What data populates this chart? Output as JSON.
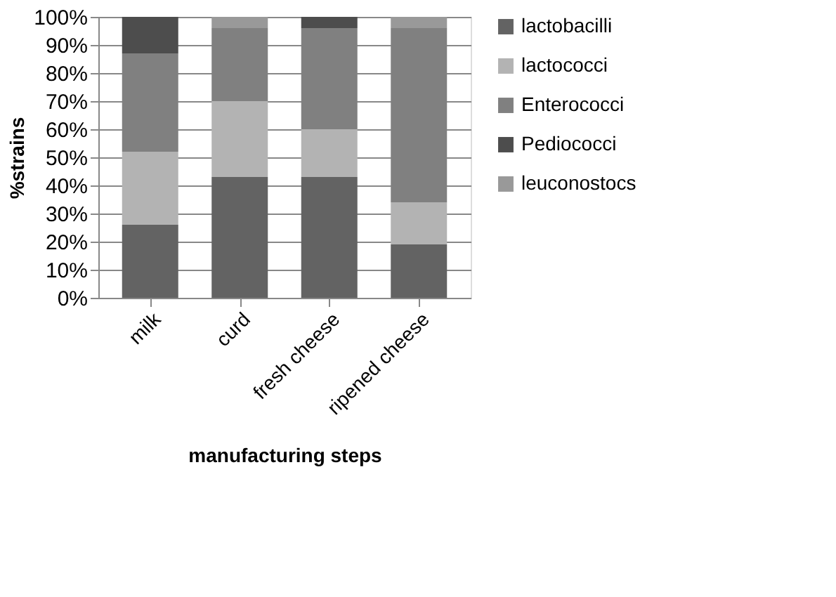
{
  "chart_data": {
    "type": "bar",
    "stacked": true,
    "xlabel": "manufacturing steps",
    "ylabel": "%strains",
    "categories": [
      "milk",
      "curd",
      "fresh cheese",
      "ripened cheese"
    ],
    "series": [
      {
        "name": "lactobacilli",
        "color": "#636363",
        "values": [
          26,
          43,
          43,
          19
        ]
      },
      {
        "name": "lactococci",
        "color": "#b3b3b3",
        "values": [
          26,
          27,
          17,
          15
        ]
      },
      {
        "name": "Enterococci",
        "color": "#808080",
        "values": [
          35,
          26,
          36,
          62
        ]
      },
      {
        "name": "Pediococci",
        "color": "#4d4d4d",
        "values": [
          13,
          0,
          4,
          0
        ]
      },
      {
        "name": "leuconostocs",
        "color": "#999999",
        "values": [
          0,
          4,
          0,
          4
        ]
      }
    ],
    "ylim": [
      0,
      100
    ],
    "yticks": [
      {
        "value": 0,
        "label": "0%"
      },
      {
        "value": 10,
        "label": "10%"
      },
      {
        "value": 20,
        "label": "20%"
      },
      {
        "value": 30,
        "label": "30%"
      },
      {
        "value": 40,
        "label": "40%"
      },
      {
        "value": 50,
        "label": "50%"
      },
      {
        "value": 60,
        "label": "60%"
      },
      {
        "value": 70,
        "label": "70%"
      },
      {
        "value": 80,
        "label": "80%"
      },
      {
        "value": 90,
        "label": "90%"
      },
      {
        "value": 100,
        "label": "100%"
      }
    ],
    "grid": "y",
    "legend": "right"
  }
}
